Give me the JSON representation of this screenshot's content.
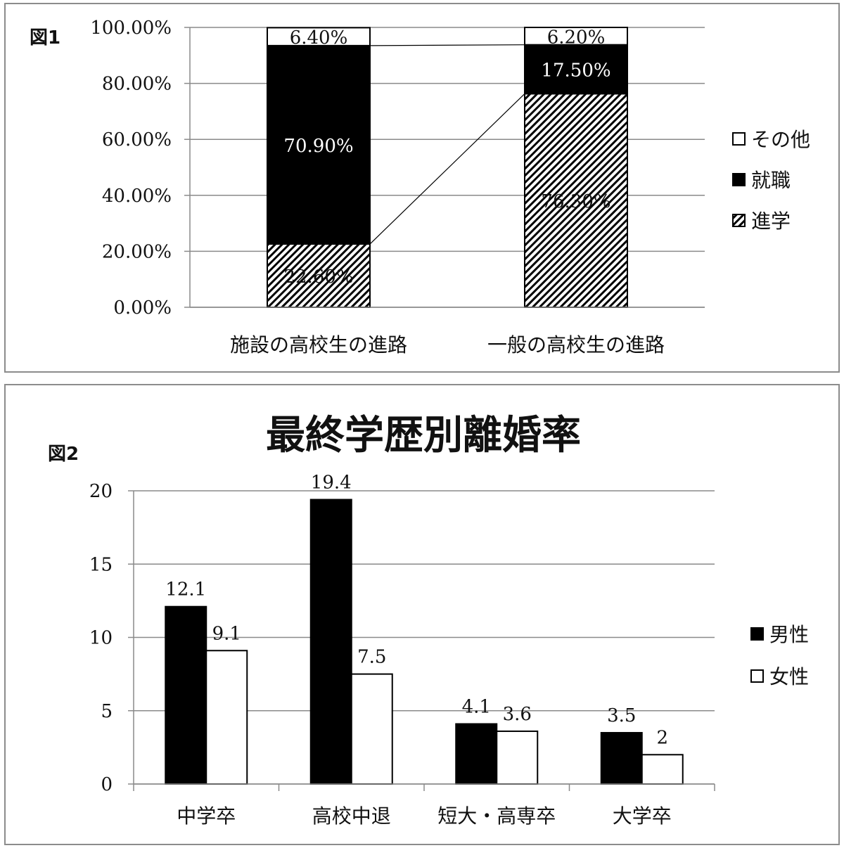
{
  "chart_data": [
    {
      "type": "bar",
      "stacked": true,
      "figure_label": "図1",
      "categories": [
        "施設の高校生の進路",
        "一般の高校生の進路"
      ],
      "series": [
        {
          "name": "進学",
          "values": [
            22.6,
            76.3
          ],
          "labels": [
            "22.60%",
            "76.30%"
          ]
        },
        {
          "name": "就職",
          "values": [
            70.9,
            17.5
          ],
          "labels": [
            "70.90%",
            "17.50%"
          ]
        },
        {
          "name": "その他",
          "values": [
            6.4,
            6.2
          ],
          "labels": [
            "6.40%",
            "6.20%"
          ]
        }
      ],
      "legend_order": [
        "その他",
        "就職",
        "進学"
      ],
      "yticks": [
        "0.00%",
        "20.00%",
        "40.00%",
        "60.00%",
        "80.00%",
        "100.00%"
      ],
      "ylim": [
        0,
        100
      ],
      "grid": true,
      "legend_position": "right",
      "series_lines": true
    },
    {
      "type": "bar",
      "figure_label": "図2",
      "title": "最終学歴別離婚率",
      "categories": [
        "中学卒",
        "高校中退",
        "短大・高専卒",
        "大学卒"
      ],
      "series": [
        {
          "name": "男性",
          "values": [
            12.1,
            19.4,
            4.1,
            3.5
          ],
          "labels": [
            "12.1",
            "19.4",
            "4.1",
            "3.5"
          ],
          "fill": "#000000"
        },
        {
          "name": "女性",
          "values": [
            9.1,
            7.5,
            3.6,
            2
          ],
          "labels": [
            "9.1",
            "7.5",
            "3.6",
            "2"
          ],
          "fill": "#ffffff"
        }
      ],
      "yticks": [
        "0",
        "5",
        "10",
        "15",
        "20"
      ],
      "ylim": [
        0,
        20
      ],
      "grid": true,
      "legend_position": "right"
    }
  ]
}
